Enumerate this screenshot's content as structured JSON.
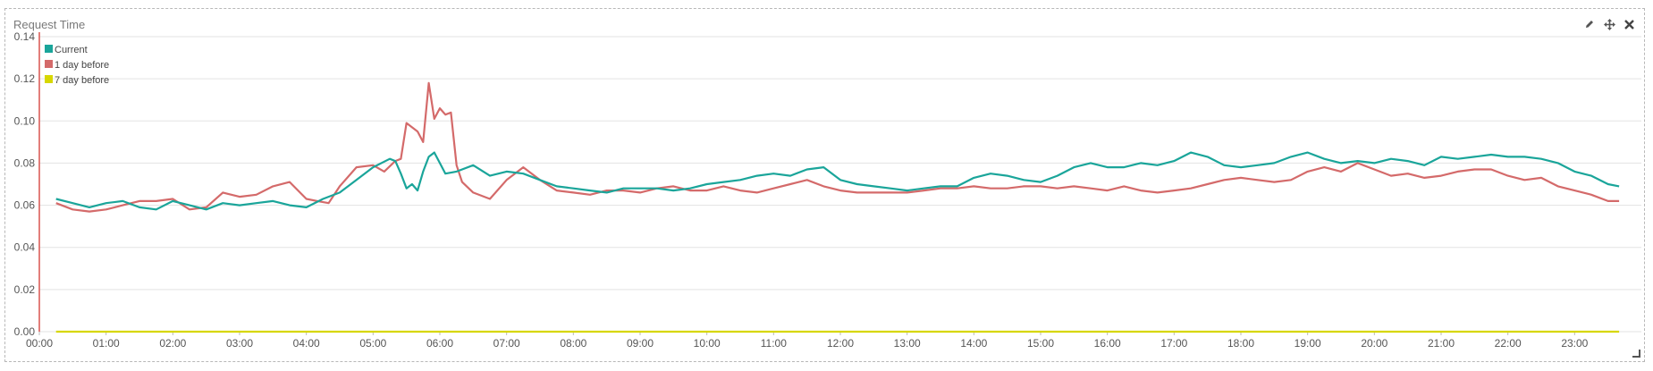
{
  "panel": {
    "title": "Request Time"
  },
  "toolbar": {
    "edit_icon": "pencil-icon",
    "move_icon": "move-icon",
    "close_icon": "close-icon"
  },
  "chart_data": {
    "type": "line",
    "title": "Request Time",
    "xlabel": "",
    "ylabel": "",
    "ylim": [
      0,
      0.14
    ],
    "xlim": [
      "00:00",
      "24:00"
    ],
    "y_ticks": [
      "0.00",
      "0.02",
      "0.04",
      "0.06",
      "0.08",
      "0.10",
      "0.12",
      "0.14"
    ],
    "x_ticks": [
      "00:00",
      "01:00",
      "02:00",
      "03:00",
      "04:00",
      "05:00",
      "06:00",
      "07:00",
      "08:00",
      "09:00",
      "10:00",
      "11:00",
      "12:00",
      "13:00",
      "14:00",
      "15:00",
      "16:00",
      "17:00",
      "18:00",
      "19:00",
      "20:00",
      "21:00",
      "22:00",
      "23:00"
    ],
    "grid": true,
    "legend_position": "top-left",
    "series": [
      {
        "name": "Current",
        "color": "#1aa59a",
        "x": [
          "00:15",
          "00:30",
          "00:45",
          "01:00",
          "01:15",
          "01:30",
          "01:45",
          "02:00",
          "02:15",
          "02:30",
          "02:45",
          "03:00",
          "03:15",
          "03:30",
          "03:45",
          "04:00",
          "04:15",
          "04:30",
          "04:45",
          "05:00",
          "05:15",
          "05:20",
          "05:25",
          "05:30",
          "05:35",
          "05:40",
          "05:45",
          "05:50",
          "05:55",
          "06:00",
          "06:05",
          "06:15",
          "06:30",
          "06:45",
          "07:00",
          "07:15",
          "07:30",
          "07:45",
          "08:00",
          "08:15",
          "08:30",
          "08:45",
          "09:00",
          "09:15",
          "09:30",
          "09:45",
          "10:00",
          "10:15",
          "10:30",
          "10:45",
          "11:00",
          "11:15",
          "11:30",
          "11:45",
          "12:00",
          "12:15",
          "12:30",
          "12:45",
          "13:00",
          "13:15",
          "13:30",
          "13:45",
          "14:00",
          "14:15",
          "14:30",
          "14:45",
          "15:00",
          "15:15",
          "15:30",
          "15:45",
          "16:00",
          "16:15",
          "16:30",
          "16:45",
          "17:00",
          "17:15",
          "17:30",
          "17:45",
          "18:00",
          "18:15",
          "18:30",
          "18:45",
          "19:00",
          "19:15",
          "19:30",
          "19:45",
          "20:00",
          "20:15",
          "20:30",
          "20:45",
          "21:00",
          "21:15",
          "21:30",
          "21:45",
          "22:00",
          "22:15",
          "22:30",
          "22:45",
          "23:00",
          "23:15",
          "23:30",
          "23:40"
        ],
        "values": [
          0.063,
          0.061,
          0.059,
          0.061,
          0.062,
          0.059,
          0.058,
          0.062,
          0.06,
          0.058,
          0.061,
          0.06,
          0.061,
          0.062,
          0.06,
          0.059,
          0.063,
          0.066,
          0.072,
          0.078,
          0.082,
          0.081,
          0.075,
          0.068,
          0.07,
          0.067,
          0.076,
          0.083,
          0.085,
          0.08,
          0.075,
          0.076,
          0.079,
          0.074,
          0.076,
          0.075,
          0.072,
          0.069,
          0.068,
          0.067,
          0.066,
          0.068,
          0.068,
          0.068,
          0.067,
          0.068,
          0.07,
          0.071,
          0.072,
          0.074,
          0.075,
          0.074,
          0.077,
          0.078,
          0.072,
          0.07,
          0.069,
          0.068,
          0.067,
          0.068,
          0.069,
          0.069,
          0.073,
          0.075,
          0.074,
          0.072,
          0.071,
          0.074,
          0.078,
          0.08,
          0.078,
          0.078,
          0.08,
          0.079,
          0.081,
          0.085,
          0.083,
          0.079,
          0.078,
          0.079,
          0.08,
          0.083,
          0.085,
          0.082,
          0.08,
          0.081,
          0.08,
          0.082,
          0.081,
          0.079,
          0.083,
          0.082,
          0.083,
          0.084,
          0.083,
          0.083,
          0.082,
          0.08,
          0.076,
          0.074,
          0.07,
          0.069
        ]
      },
      {
        "name": "1 day before",
        "color": "#d46a6a",
        "x": [
          "00:15",
          "00:30",
          "00:45",
          "01:00",
          "01:15",
          "01:30",
          "01:45",
          "02:00",
          "02:15",
          "02:30",
          "02:45",
          "03:00",
          "03:15",
          "03:30",
          "03:45",
          "04:00",
          "04:10",
          "04:20",
          "04:30",
          "04:45",
          "05:00",
          "05:10",
          "05:20",
          "05:25",
          "05:30",
          "05:35",
          "05:40",
          "05:45",
          "05:50",
          "05:55",
          "06:00",
          "06:05",
          "06:10",
          "06:15",
          "06:20",
          "06:30",
          "06:45",
          "07:00",
          "07:15",
          "07:30",
          "07:45",
          "08:00",
          "08:15",
          "08:30",
          "08:45",
          "09:00",
          "09:15",
          "09:30",
          "09:45",
          "10:00",
          "10:15",
          "10:30",
          "10:45",
          "11:00",
          "11:15",
          "11:30",
          "11:45",
          "12:00",
          "12:15",
          "12:30",
          "12:45",
          "13:00",
          "13:15",
          "13:30",
          "13:45",
          "14:00",
          "14:15",
          "14:30",
          "14:45",
          "15:00",
          "15:15",
          "15:30",
          "15:45",
          "16:00",
          "16:15",
          "16:30",
          "16:45",
          "17:00",
          "17:15",
          "17:30",
          "17:45",
          "18:00",
          "18:15",
          "18:30",
          "18:45",
          "19:00",
          "19:15",
          "19:30",
          "19:45",
          "20:00",
          "20:15",
          "20:30",
          "20:45",
          "21:00",
          "21:15",
          "21:30",
          "21:45",
          "22:00",
          "22:15",
          "22:30",
          "22:45",
          "23:00",
          "23:15",
          "23:30",
          "23:40"
        ],
        "values": [
          0.061,
          0.058,
          0.057,
          0.058,
          0.06,
          0.062,
          0.062,
          0.063,
          0.058,
          0.059,
          0.066,
          0.064,
          0.065,
          0.069,
          0.071,
          0.063,
          0.062,
          0.061,
          0.069,
          0.078,
          0.079,
          0.076,
          0.081,
          0.082,
          0.099,
          0.097,
          0.095,
          0.09,
          0.118,
          0.101,
          0.106,
          0.103,
          0.104,
          0.079,
          0.071,
          0.066,
          0.063,
          0.072,
          0.078,
          0.072,
          0.067,
          0.066,
          0.065,
          0.067,
          0.067,
          0.066,
          0.068,
          0.069,
          0.067,
          0.067,
          0.069,
          0.067,
          0.066,
          0.068,
          0.07,
          0.072,
          0.069,
          0.067,
          0.066,
          0.066,
          0.066,
          0.066,
          0.067,
          0.068,
          0.068,
          0.069,
          0.068,
          0.068,
          0.069,
          0.069,
          0.068,
          0.069,
          0.068,
          0.067,
          0.069,
          0.067,
          0.066,
          0.067,
          0.068,
          0.07,
          0.072,
          0.073,
          0.072,
          0.071,
          0.072,
          0.076,
          0.078,
          0.076,
          0.08,
          0.077,
          0.074,
          0.075,
          0.073,
          0.074,
          0.076,
          0.077,
          0.077,
          0.074,
          0.072,
          0.073,
          0.069,
          0.067,
          0.065,
          0.062,
          0.062
        ]
      },
      {
        "name": "7 day before",
        "color": "#d7d700",
        "x": [
          "00:15",
          "23:40"
        ],
        "values": [
          0.0,
          0.0
        ]
      }
    ]
  }
}
